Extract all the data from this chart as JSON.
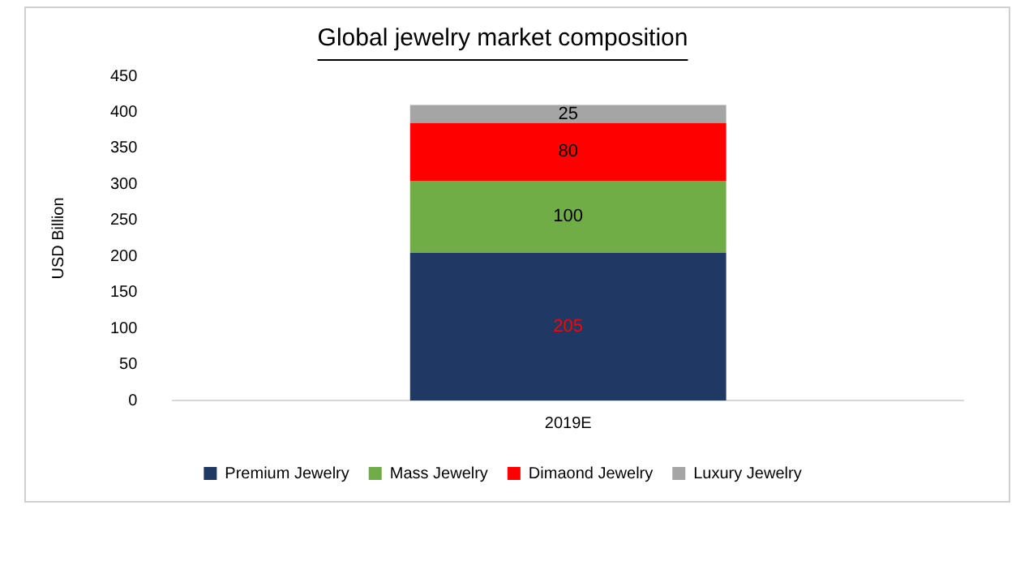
{
  "chart_data": {
    "type": "bar",
    "title": "Global jewelry market composition",
    "ylabel": "USD Billion",
    "categories": [
      "2019E"
    ],
    "stacked": true,
    "data_labels": true,
    "legend": "bottom",
    "grid": false,
    "series": [
      {
        "name": "Premium Jewelry",
        "color": "#1f3864",
        "values": [
          205
        ]
      },
      {
        "name": "Mass Jewelry",
        "color": "#70ad47",
        "values": [
          100
        ]
      },
      {
        "name": "Dimaond Jewelry",
        "color": "#ff0000",
        "values": [
          80
        ]
      },
      {
        "name": "Luxury Jewelry",
        "color": "#a5a5a5",
        "values": [
          25
        ]
      }
    ],
    "ylim": [
      0,
      450
    ],
    "yticks": [
      0,
      50,
      100,
      150,
      200,
      250,
      300,
      350,
      400,
      450
    ]
  }
}
